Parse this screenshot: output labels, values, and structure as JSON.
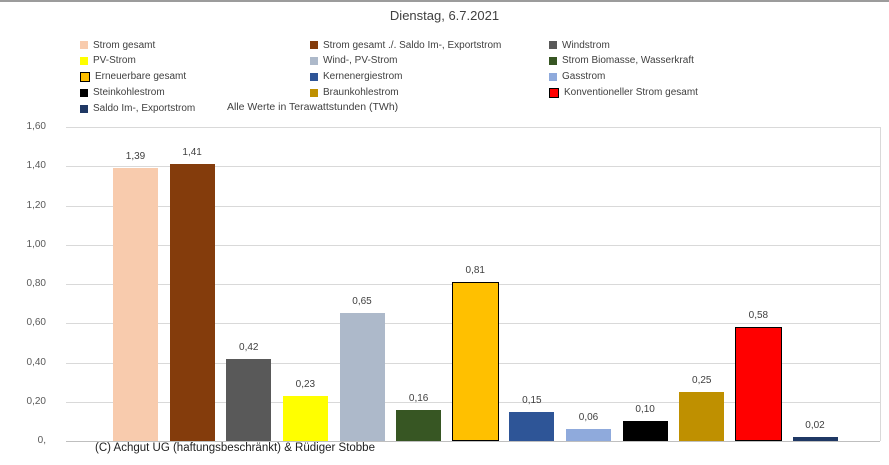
{
  "chart_data": {
    "type": "bar",
    "title": "Dienstag, 6.7.2021",
    "note": "Alle Werte in Terawattstunden (TWh)",
    "copyright": "(C) Achgut UG (haftungsbeschränkt) & Rüdiger Stobbe",
    "ylim": [
      0,
      1.6
    ],
    "ytick_interval": 0.2,
    "grid": "horizontal",
    "legend_position": "top, 3 columns",
    "yticks": [
      {
        "value": 0,
        "label": "0,"
      },
      {
        "value": 0.2,
        "label": "0,20"
      },
      {
        "value": 0.4,
        "label": "0,40"
      },
      {
        "value": 0.6,
        "label": "0,60"
      },
      {
        "value": 0.8,
        "label": "0,80"
      },
      {
        "value": 1.0,
        "label": "1,00"
      },
      {
        "value": 1.2,
        "label": "1,20"
      },
      {
        "value": 1.4,
        "label": "1,40"
      },
      {
        "value": 1.6,
        "label": "1,60"
      }
    ],
    "series": [
      {
        "name": "Strom gesamt",
        "value": 1.39,
        "label": "1,39",
        "color": "#F8CBAD",
        "outline": null
      },
      {
        "name": "Strom gesamt ./. Saldo Im-, Exportstrom",
        "value": 1.41,
        "label": "1,41",
        "color": "#843C0C",
        "outline": null
      },
      {
        "name": "Windstrom",
        "value": 0.42,
        "label": "0,42",
        "color": "#595959",
        "outline": null
      },
      {
        "name": "PV-Strom",
        "value": 0.23,
        "label": "0,23",
        "color": "#FFFF00",
        "outline": null
      },
      {
        "name": "Wind-, PV-Strom",
        "value": 0.65,
        "label": "0,65",
        "color": "#ADB9CA",
        "outline": null
      },
      {
        "name": "Strom Biomasse, Wasserkraft",
        "value": 0.16,
        "label": "0,16",
        "color": "#375623",
        "outline": null
      },
      {
        "name": "Erneuerbare gesamt",
        "value": 0.81,
        "label": "0,81",
        "color": "#FFC000",
        "outline": "#000000"
      },
      {
        "name": "Kernenergiestrom",
        "value": 0.15,
        "label": "0,15",
        "color": "#2E5597",
        "outline": null
      },
      {
        "name": "Gasstrom",
        "value": 0.06,
        "label": "0,06",
        "color": "#8FAADC",
        "outline": null
      },
      {
        "name": "Steinkohlestrom",
        "value": 0.1,
        "label": "0,10",
        "color": "#000000",
        "outline": null
      },
      {
        "name": "Braunkohlestrom",
        "value": 0.25,
        "label": "0,25",
        "color": "#BF9000",
        "outline": null
      },
      {
        "name": "Konventioneller Strom gesamt",
        "value": 0.58,
        "label": "0,58",
        "color": "#FF0000",
        "outline": "#000000"
      },
      {
        "name": "Saldo Im-, Exportstrom",
        "value": 0.02,
        "label": "0,02",
        "color": "#1F3864",
        "outline": null
      }
    ],
    "legend_columns": [
      [
        0,
        3,
        6,
        9,
        12
      ],
      [
        1,
        4,
        7,
        10
      ],
      [
        2,
        5,
        8,
        11
      ]
    ]
  }
}
